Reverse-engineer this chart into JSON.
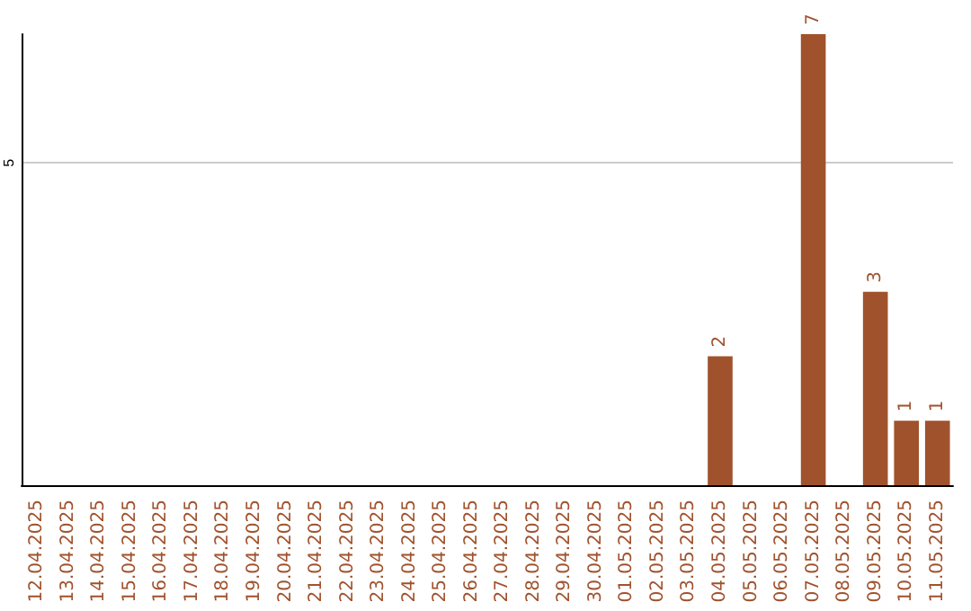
{
  "chart_data": {
    "type": "bar",
    "categories": [
      "12.04.2025",
      "13.04.2025",
      "14.04.2025",
      "15.04.2025",
      "16.04.2025",
      "17.04.2025",
      "18.04.2025",
      "19.04.2025",
      "20.04.2025",
      "21.04.2025",
      "22.04.2025",
      "23.04.2025",
      "24.04.2025",
      "25.04.2025",
      "26.04.2025",
      "27.04.2025",
      "28.04.2025",
      "29.04.2025",
      "30.04.2025",
      "01.05.2025",
      "02.05.2025",
      "03.05.2025",
      "04.05.2025",
      "05.05.2025",
      "06.05.2025",
      "07.05.2025",
      "08.05.2025",
      "09.05.2025",
      "10.05.2025",
      "11.05.2025"
    ],
    "values": [
      null,
      null,
      null,
      null,
      null,
      null,
      null,
      null,
      null,
      null,
      null,
      null,
      null,
      null,
      null,
      null,
      null,
      null,
      null,
      null,
      null,
      null,
      2,
      null,
      null,
      7,
      null,
      3,
      1,
      1
    ],
    "color": "#a0522d",
    "ylim": [
      0,
      7
    ],
    "yticks": [
      5
    ],
    "grid": "y",
    "data_labels": true
  }
}
